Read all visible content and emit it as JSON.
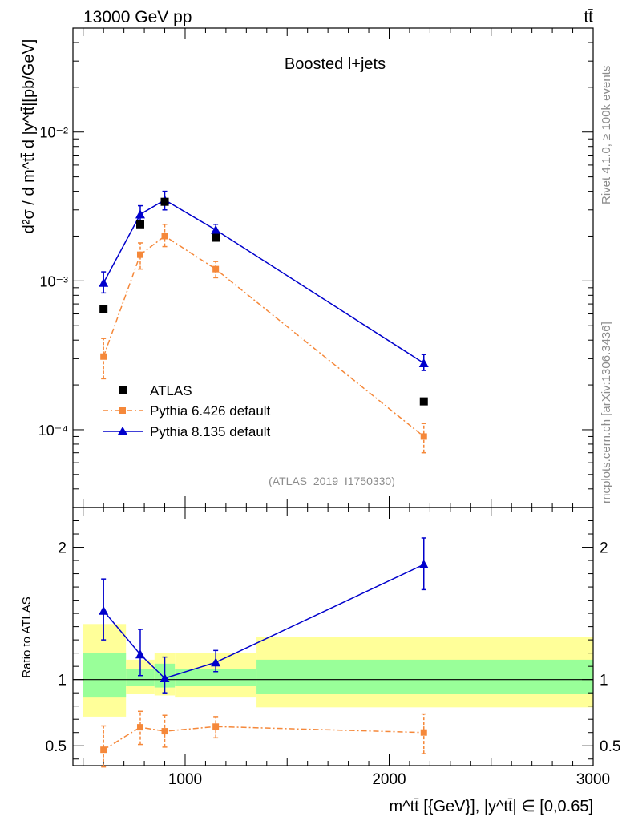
{
  "header": {
    "left": "13000 GeV pp",
    "right": "tt̄"
  },
  "side_labels": {
    "rivet": "Rivet 4.1.0, ≥ 100k events",
    "mcplots": "mcplots.cern.ch [arXiv:1306.3436]"
  },
  "watermark": "(ATLAS_2019_I1750330)",
  "colors": {
    "atlas": "#000000",
    "py6": "#f5883a",
    "py8": "#0000cc",
    "band_inner": "#99ff99",
    "band_outer": "#ffff99"
  },
  "chart_data": [
    {
      "type": "scatter",
      "title": "Boosted l+jets",
      "ylabel": "d²σ / d m^tt̄ d |y^tt̄|[pb/GeV]",
      "yscale": "log",
      "xlim": [
        450,
        3000
      ],
      "ylim": [
        3e-05,
        0.05
      ],
      "y_tick_labels": [
        "10⁻⁴",
        "10⁻³",
        "10⁻²"
      ],
      "legend": [
        "ATLAS",
        "Pythia 6.426 default",
        "Pythia 8.135 default"
      ],
      "series": [
        {
          "name": "ATLAS",
          "x": [
            600,
            780,
            900,
            1150,
            2170
          ],
          "y": [
            0.00065,
            0.0024,
            0.0034,
            0.00195,
            0.000155
          ]
        },
        {
          "name": "Pythia 6.426 default",
          "x": [
            600,
            780,
            900,
            1150,
            2170
          ],
          "y": [
            0.00031,
            0.0015,
            0.002,
            0.0012,
            9e-05
          ],
          "err_lo": [
            0.00022,
            0.0012,
            0.0017,
            0.00105,
            7e-05
          ],
          "err_hi": [
            0.00041,
            0.0018,
            0.0024,
            0.00135,
            0.00011
          ]
        },
        {
          "name": "Pythia 8.135 default",
          "x": [
            600,
            780,
            900,
            1150,
            2170
          ],
          "y": [
            0.00097,
            0.0028,
            0.0035,
            0.0022,
            0.00028
          ],
          "err_lo": [
            0.00083,
            0.0024,
            0.003,
            0.002,
            0.00025
          ],
          "err_hi": [
            0.00115,
            0.0032,
            0.004,
            0.0024,
            0.00032
          ]
        }
      ]
    },
    {
      "type": "scatter",
      "ylabel": "Ratio to ATLAS",
      "xlabel": "m^tt̄ [{GeV}], |y^tt̄| ∈ [0,0.65]",
      "xlim": [
        450,
        3000
      ],
      "ylim": [
        0.35,
        2.3
      ],
      "x_ticks": [
        1000,
        2000,
        3000
      ],
      "y_ticks": [
        0.5,
        1,
        2
      ],
      "bands": [
        {
          "x0": 500,
          "x1": 710,
          "inner": [
            0.87,
            1.2
          ],
          "outer": [
            0.72,
            1.42
          ]
        },
        {
          "x0": 710,
          "x1": 850,
          "inner": [
            0.95,
            1.08
          ],
          "outer": [
            0.89,
            1.15
          ]
        },
        {
          "x0": 850,
          "x1": 950,
          "inner": [
            0.94,
            1.12
          ],
          "outer": [
            0.88,
            1.2
          ]
        },
        {
          "x0": 950,
          "x1": 1350,
          "inner": [
            0.95,
            1.08
          ],
          "outer": [
            0.87,
            1.2
          ]
        },
        {
          "x0": 1350,
          "x1": 3000,
          "inner": [
            0.89,
            1.15
          ],
          "outer": [
            0.79,
            1.32
          ]
        }
      ],
      "series": [
        {
          "name": "Pythia 6.426 default",
          "x": [
            600,
            780,
            900,
            1150,
            2170
          ],
          "y": [
            0.47,
            0.64,
            0.61,
            0.645,
            0.6
          ],
          "err_lo": [
            0.34,
            0.51,
            0.49,
            0.56,
            0.44
          ],
          "err_hi": [
            0.65,
            0.76,
            0.73,
            0.72,
            0.74
          ]
        },
        {
          "name": "Pythia 8.135 default",
          "x": [
            600,
            780,
            900,
            1150,
            2170
          ],
          "y": [
            1.52,
            1.19,
            1.01,
            1.13,
            1.87
          ],
          "err_lo": [
            1.3,
            1.03,
            0.9,
            1.06,
            1.68
          ],
          "err_hi": [
            1.76,
            1.38,
            1.17,
            1.22,
            2.07
          ]
        }
      ]
    }
  ]
}
